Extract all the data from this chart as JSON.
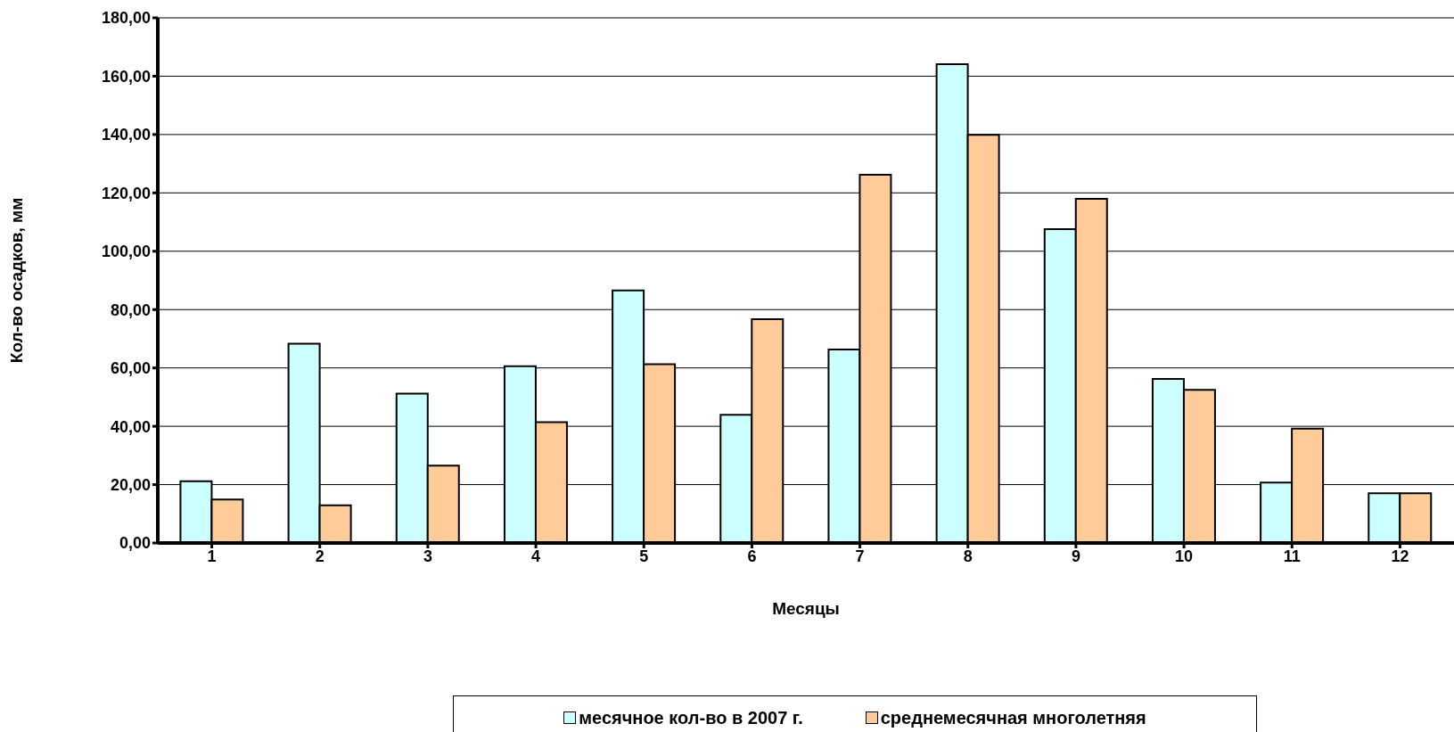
{
  "chart_data": {
    "type": "bar",
    "xlabel": "Месяцы",
    "ylabel": "Кол-во осадков, мм",
    "categories": [
      "1",
      "2",
      "3",
      "4",
      "5",
      "6",
      "7",
      "8",
      "9",
      "10",
      "11",
      "12"
    ],
    "series": [
      {
        "name": "месячное кол-во в 2007 г.",
        "color": "#ccffff",
        "values": [
          21.2,
          68.3,
          51.2,
          60.6,
          86.6,
          43.9,
          66.3,
          164.1,
          107.6,
          56.2,
          20.7,
          17.0
        ]
      },
      {
        "name": "среднемесячная многолетняя",
        "color": "#ffcc99",
        "values": [
          14.9,
          12.9,
          26.5,
          41.4,
          61.3,
          76.7,
          126.2,
          139.9,
          118.0,
          52.5,
          39.2,
          17.0
        ]
      }
    ],
    "ylim": [
      0,
      180
    ],
    "yticks": [
      {
        "value": 0,
        "label": "0,00"
      },
      {
        "value": 20,
        "label": "20,00"
      },
      {
        "value": 40,
        "label": "40,00"
      },
      {
        "value": 60,
        "label": "60,00"
      },
      {
        "value": 80,
        "label": "80,00"
      },
      {
        "value": 100,
        "label": "100,00"
      },
      {
        "value": 120,
        "label": "120,00"
      },
      {
        "value": 140,
        "label": "140,00"
      },
      {
        "value": 160,
        "label": "160,00"
      },
      {
        "value": 180,
        "label": "180,00"
      }
    ],
    "grid": "y",
    "legend": "bottom"
  }
}
